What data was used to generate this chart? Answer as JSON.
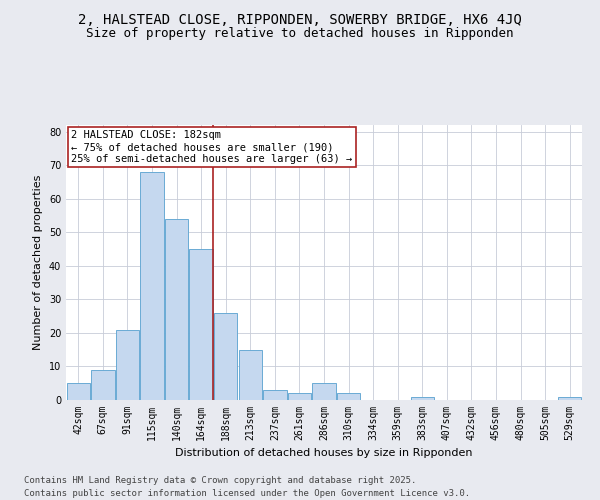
{
  "title_line1": "2, HALSTEAD CLOSE, RIPPONDEN, SOWERBY BRIDGE, HX6 4JQ",
  "title_line2": "Size of property relative to detached houses in Ripponden",
  "xlabel": "Distribution of detached houses by size in Ripponden",
  "ylabel": "Number of detached properties",
  "categories": [
    "42sqm",
    "67sqm",
    "91sqm",
    "115sqm",
    "140sqm",
    "164sqm",
    "188sqm",
    "213sqm",
    "237sqm",
    "261sqm",
    "286sqm",
    "310sqm",
    "334sqm",
    "359sqm",
    "383sqm",
    "407sqm",
    "432sqm",
    "456sqm",
    "480sqm",
    "505sqm",
    "529sqm"
  ],
  "values": [
    5,
    9,
    21,
    68,
    54,
    45,
    26,
    15,
    3,
    2,
    5,
    2,
    0,
    0,
    1,
    0,
    0,
    0,
    0,
    0,
    1
  ],
  "bar_color": "#c5d8ef",
  "bar_edge_color": "#6aaad4",
  "background_color": "#e8eaf0",
  "plot_bg_color": "#ffffff",
  "vline_pos": 5.5,
  "vline_color": "#aa2222",
  "annotation_title": "2 HALSTEAD CLOSE: 182sqm",
  "annotation_line1": "← 75% of detached houses are smaller (190)",
  "annotation_line2": "25% of semi-detached houses are larger (63) →",
  "annotation_box_color": "#ffffff",
  "annotation_box_edge": "#aa2222",
  "ylim": [
    0,
    82
  ],
  "yticks": [
    0,
    10,
    20,
    30,
    40,
    50,
    60,
    70,
    80
  ],
  "footer_line1": "Contains HM Land Registry data © Crown copyright and database right 2025.",
  "footer_line2": "Contains public sector information licensed under the Open Government Licence v3.0.",
  "title_fontsize": 10,
  "subtitle_fontsize": 9,
  "axis_label_fontsize": 8,
  "tick_fontsize": 7,
  "annotation_fontsize": 7.5,
  "footer_fontsize": 6.5
}
